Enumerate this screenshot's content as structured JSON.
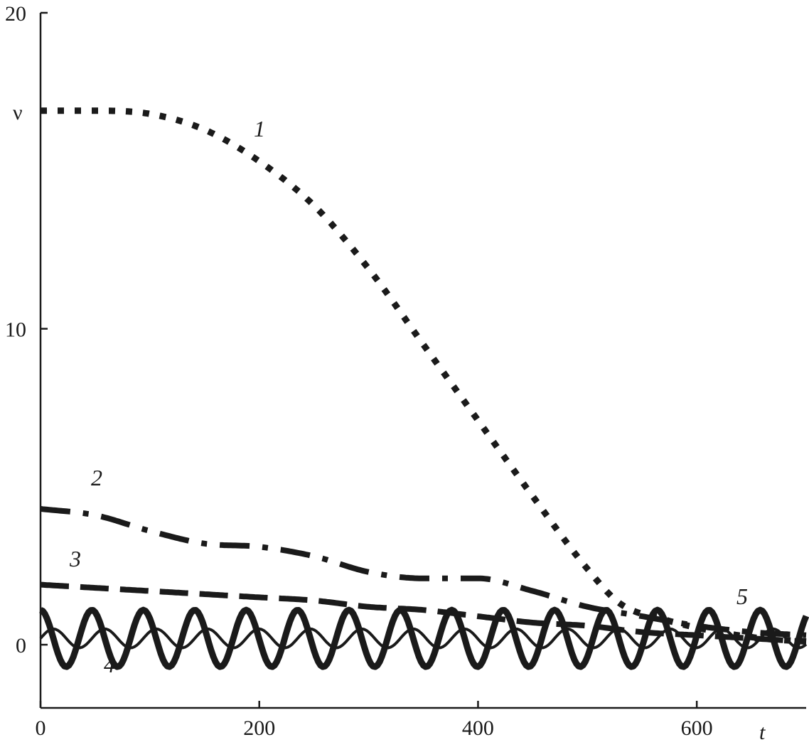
{
  "chart_data": {
    "type": "line",
    "xlabel": "t",
    "ylabel": "ν",
    "xlim": [
      0,
      700
    ],
    "ylim": [
      -2,
      20
    ],
    "x_ticks": [
      0,
      200,
      400,
      600
    ],
    "y_ticks": [
      0,
      10,
      20
    ],
    "x_tick_labels": [
      "0",
      "200",
      "400",
      "600"
    ],
    "y_tick_labels": [
      "0",
      "10",
      "20"
    ],
    "grid": false,
    "legend": "none",
    "series": [
      {
        "label": "1",
        "style": "dotted",
        "points": [
          [
            0,
            16.9
          ],
          [
            50,
            16.9
          ],
          [
            100,
            16.8
          ],
          [
            150,
            16.3
          ],
          [
            200,
            15.3
          ],
          [
            250,
            13.9
          ],
          [
            300,
            11.9
          ],
          [
            350,
            9.5
          ],
          [
            400,
            7.1
          ],
          [
            450,
            4.7
          ],
          [
            500,
            2.4
          ],
          [
            530,
            1.3
          ],
          [
            570,
            0.8
          ],
          [
            620,
            0.4
          ],
          [
            660,
            0.2
          ],
          [
            700,
            0.1
          ]
        ]
      },
      {
        "label": "2",
        "style": "dash-dot",
        "points": [
          [
            0,
            4.3
          ],
          [
            50,
            4.1
          ],
          [
            100,
            3.6
          ],
          [
            150,
            3.2
          ],
          [
            200,
            3.1
          ],
          [
            250,
            2.8
          ],
          [
            300,
            2.3
          ],
          [
            350,
            2.1
          ],
          [
            400,
            2.1
          ],
          [
            450,
            1.7
          ],
          [
            500,
            1.2
          ],
          [
            550,
            0.9
          ],
          [
            600,
            0.6
          ],
          [
            650,
            0.4
          ],
          [
            700,
            0.3
          ]
        ]
      },
      {
        "label": "3",
        "style": "dashed",
        "points": [
          [
            0,
            1.9
          ],
          [
            50,
            1.8
          ],
          [
            100,
            1.7
          ],
          [
            150,
            1.6
          ],
          [
            200,
            1.5
          ],
          [
            250,
            1.4
          ],
          [
            300,
            1.2
          ],
          [
            350,
            1.1
          ],
          [
            400,
            0.9
          ],
          [
            450,
            0.7
          ],
          [
            500,
            0.6
          ],
          [
            550,
            0.4
          ],
          [
            600,
            0.3
          ],
          [
            650,
            0.2
          ],
          [
            700,
            0.1
          ]
        ]
      },
      {
        "label": "4",
        "style": "solid-thin",
        "mean": 0.2,
        "amplitude": 0.3,
        "period": 47,
        "phase": 0.0
      },
      {
        "label": "5",
        "style": "solid-thick",
        "mean": 0.2,
        "amplitude": 0.9,
        "period": 47,
        "phase": 1.57
      }
    ]
  }
}
